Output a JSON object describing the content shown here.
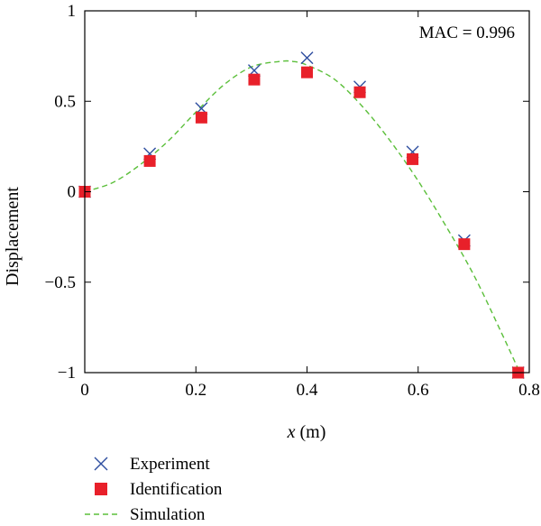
{
  "chart_data": {
    "type": "scatter",
    "xlabel_var": "x",
    "xlabel_unit": " (m)",
    "ylabel": "Displacement",
    "xlim": [
      0,
      0.8
    ],
    "ylim": [
      -1,
      1
    ],
    "xticks": [
      0,
      0.2,
      0.4,
      0.6,
      0.8
    ],
    "xtick_labels": [
      "0",
      "0.2",
      "0.4",
      "0.6",
      "0.8"
    ],
    "yticks": [
      -1,
      -0.5,
      0,
      0.5,
      1
    ],
    "ytick_labels": [
      "−1",
      "−0.5",
      "0",
      "0.5",
      "1"
    ],
    "annotation": "MAC = 0.996",
    "grid": false,
    "legend_position": "bottom-left-outside",
    "series": [
      {
        "name": "Experiment",
        "kind": "marker-x",
        "color": "#2f4fa0",
        "x": [
          0,
          0.117,
          0.21,
          0.305,
          0.4,
          0.495,
          0.59,
          0.683,
          0.78
        ],
        "y": [
          0,
          0.21,
          0.46,
          0.67,
          0.74,
          0.58,
          0.22,
          -0.27,
          -1.0
        ]
      },
      {
        "name": "Identification",
        "kind": "marker-square",
        "color": "#e8202a",
        "x": [
          0,
          0.117,
          0.21,
          0.305,
          0.4,
          0.495,
          0.59,
          0.683,
          0.78
        ],
        "y": [
          0,
          0.17,
          0.41,
          0.62,
          0.66,
          0.55,
          0.18,
          -0.29,
          -1.0
        ]
      },
      {
        "name": "Simulation",
        "kind": "dashed-line",
        "color": "#5bbf3a",
        "x": [
          0,
          0.05,
          0.1,
          0.15,
          0.2,
          0.25,
          0.3,
          0.35,
          0.375,
          0.4,
          0.45,
          0.5,
          0.55,
          0.6,
          0.65,
          0.7,
          0.75,
          0.78
        ],
        "y": [
          0,
          0.05,
          0.15,
          0.28,
          0.44,
          0.59,
          0.69,
          0.72,
          0.72,
          0.7,
          0.62,
          0.47,
          0.28,
          0.06,
          -0.19,
          -0.46,
          -0.78,
          -0.98
        ]
      }
    ]
  }
}
